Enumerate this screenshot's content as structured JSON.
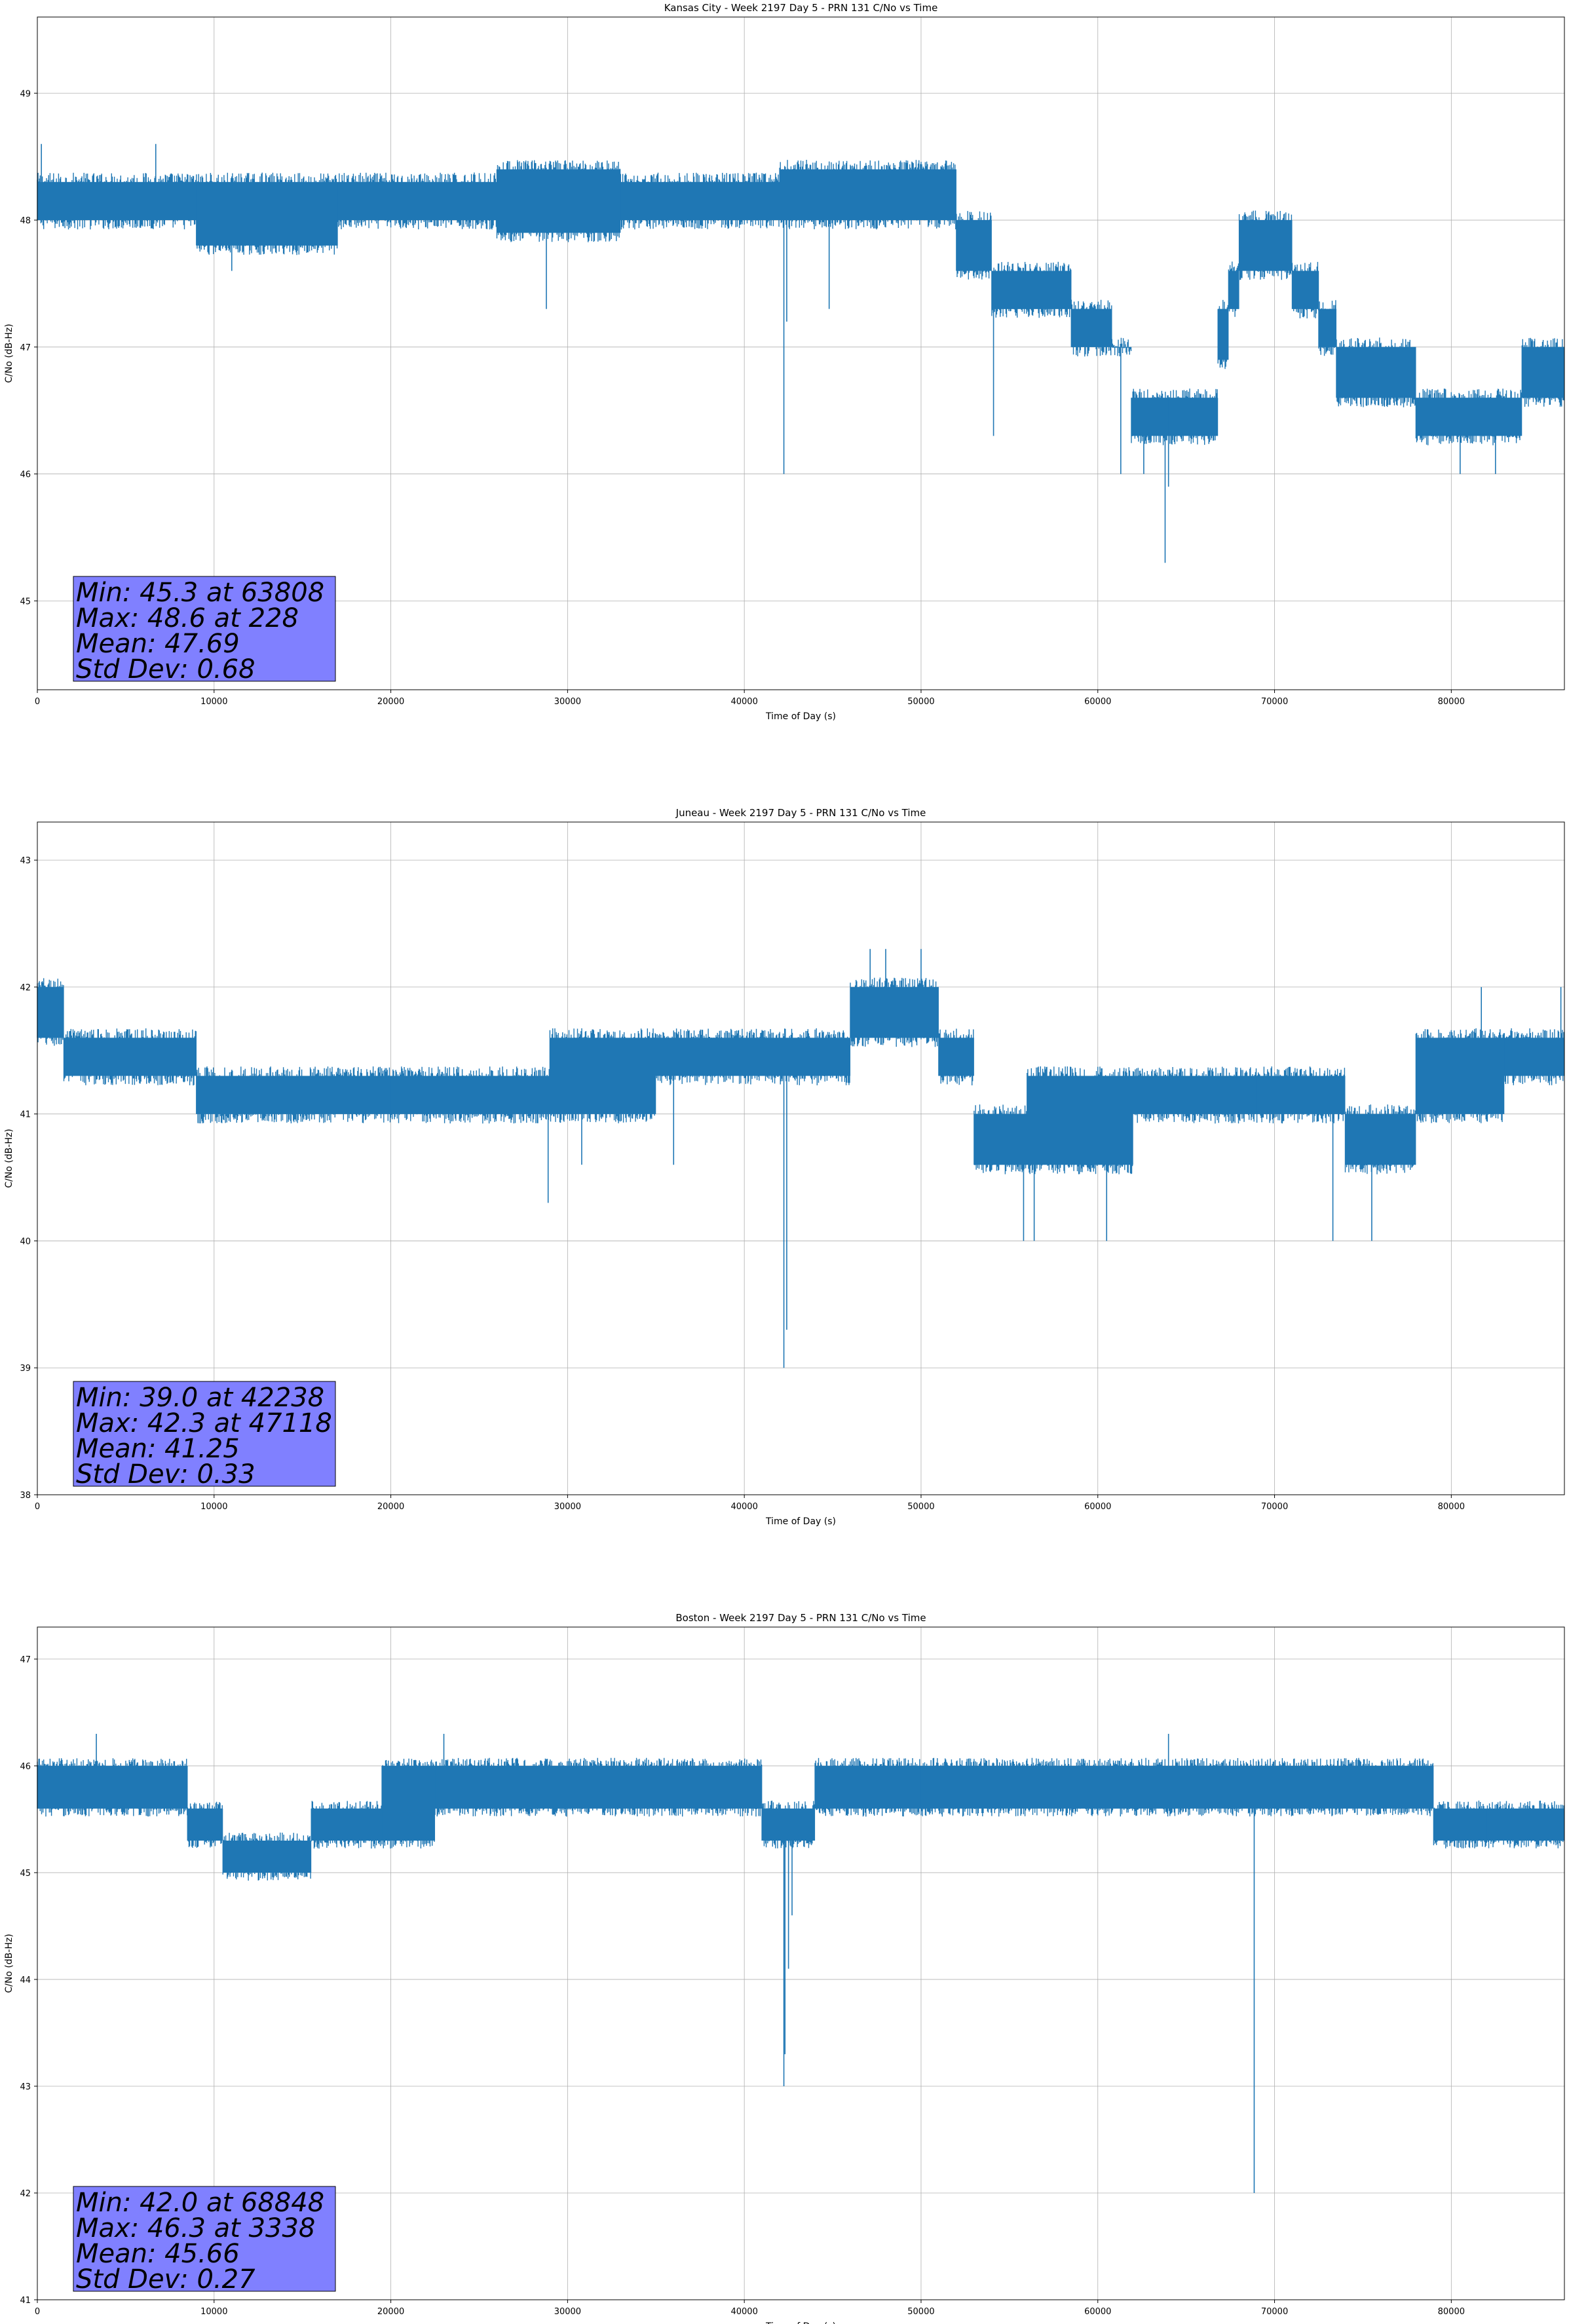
{
  "chart_data": [
    {
      "type": "line",
      "title": "Kansas City - Week 2197 Day 5 - PRN 131 C/No vs Time",
      "xlabel": "Time of Day (s)",
      "ylabel": "C/No (dB-Hz)",
      "xlim": [
        0,
        86400
      ],
      "ylim": [
        44.3,
        49.6
      ],
      "xticks": [
        0,
        10000,
        20000,
        30000,
        40000,
        50000,
        60000,
        70000,
        80000
      ],
      "yticks": [
        45,
        46,
        47,
        48,
        49
      ],
      "grid": true,
      "line_color": "#1f77b4",
      "stats_box_color": "#8080ff",
      "stats": [
        "Min: 45.3 at 63808",
        "Max: 48.6 at 228",
        "Mean: 47.69",
        "Std Dev: 0.68"
      ],
      "series": [
        {
          "baseline": [
            [
              0,
              48.1
            ],
            [
              9000,
              48.1
            ],
            [
              9100,
              48.0
            ],
            [
              30000,
              48.1
            ],
            [
              42000,
              48.1
            ],
            [
              42300,
              48.0
            ],
            [
              52000,
              48.0
            ],
            [
              52600,
              47.8
            ],
            [
              54000,
              47.6
            ],
            [
              54500,
              47.5
            ],
            [
              57000,
              47.4
            ],
            [
              59000,
              47.3
            ],
            [
              60000,
              47.1
            ],
            [
              61000,
              47.1
            ],
            [
              61800,
              46.5
            ],
            [
              64000,
              46.4
            ],
            [
              66000,
              46.5
            ],
            [
              66800,
              47.1
            ],
            [
              67500,
              47.5
            ],
            [
              68500,
              47.7
            ],
            [
              69500,
              47.8
            ],
            [
              71000,
              47.8
            ],
            [
              72000,
              47.4
            ],
            [
              73500,
              47.1
            ],
            [
              74500,
              46.8
            ],
            [
              78000,
              46.8
            ],
            [
              79000,
              46.5
            ],
            [
              83000,
              46.5
            ],
            [
              84500,
              46.8
            ],
            [
              86400,
              46.8
            ]
          ],
          "band_segments": [
            [
              0,
              9000,
              48.0,
              48.3
            ],
            [
              9000,
              17000,
              47.8,
              48.3
            ],
            [
              17000,
              26000,
              48.0,
              48.3
            ],
            [
              26000,
              33000,
              47.9,
              48.4
            ],
            [
              33000,
              42000,
              48.0,
              48.3
            ],
            [
              42000,
              52000,
              48.0,
              48.4
            ],
            [
              52000,
              54000,
              47.6,
              48.0
            ],
            [
              54000,
              58500,
              47.3,
              47.6
            ],
            [
              58500,
              60800,
              47.0,
              47.3
            ],
            [
              60800,
              61900,
              47.0,
              47.0
            ],
            [
              61900,
              64000,
              46.3,
              46.6
            ],
            [
              64000,
              66800,
              46.3,
              46.6
            ],
            [
              66800,
              67400,
              46.9,
              47.3
            ],
            [
              67400,
              68000,
              47.3,
              47.6
            ],
            [
              68000,
              71000,
              47.6,
              48.0
            ],
            [
              71000,
              72500,
              47.3,
              47.6
            ],
            [
              72500,
              73500,
              47.0,
              47.3
            ],
            [
              73500,
              78000,
              46.6,
              47.0
            ],
            [
              78000,
              84000,
              46.3,
              46.6
            ],
            [
              84000,
              86400,
              46.6,
              47.0
            ]
          ],
          "spikes": [
            [
              42238,
              46.0
            ],
            [
              42400,
              47.2
            ],
            [
              44800,
              47.3
            ],
            [
              63808,
              45.3
            ],
            [
              64000,
              45.9
            ],
            [
              54100,
              46.3
            ],
            [
              61300,
              46.0
            ],
            [
              62600,
              46.0
            ],
            [
              80500,
              46.0
            ],
            [
              82500,
              46.0
            ],
            [
              28800,
              47.3
            ],
            [
              11000,
              47.6
            ],
            [
              6700,
              48.6
            ],
            [
              228,
              48.6
            ]
          ]
        }
      ]
    },
    {
      "type": "line",
      "title": "Juneau - Week 2197 Day 5 - PRN 131 C/No vs Time",
      "xlabel": "Time of Day (s)",
      "ylabel": "C/No (dB-Hz)",
      "xlim": [
        0,
        86400
      ],
      "ylim": [
        38.0,
        43.3
      ],
      "xticks": [
        0,
        10000,
        20000,
        30000,
        40000,
        50000,
        60000,
        70000,
        80000
      ],
      "yticks": [
        38,
        39,
        40,
        41,
        42,
        43
      ],
      "grid": true,
      "line_color": "#1f77b4",
      "stats_box_color": "#8080ff",
      "stats": [
        "Min: 39.0 at 42238",
        "Max: 42.3 at 47118",
        "Mean: 41.25",
        "Std Dev: 0.33"
      ],
      "series": [
        {
          "band_segments": [
            [
              0,
              1500,
              41.6,
              42.0
            ],
            [
              1500,
              9000,
              41.3,
              41.6
            ],
            [
              9000,
              20000,
              41.0,
              41.3
            ],
            [
              20000,
              29000,
              41.0,
              41.3
            ],
            [
              29000,
              35000,
              41.0,
              41.6
            ],
            [
              35000,
              42000,
              41.3,
              41.6
            ],
            [
              42000,
              46000,
              41.3,
              41.6
            ],
            [
              46000,
              51000,
              41.6,
              42.0
            ],
            [
              51000,
              53000,
              41.3,
              41.6
            ],
            [
              53000,
              56000,
              40.6,
              41.0
            ],
            [
              56000,
              62000,
              40.6,
              41.3
            ],
            [
              62000,
              69000,
              41.0,
              41.3
            ],
            [
              69000,
              74000,
              41.0,
              41.3
            ],
            [
              74000,
              78000,
              40.6,
              41.0
            ],
            [
              78000,
              83000,
              41.0,
              41.6
            ],
            [
              83000,
              86400,
              41.3,
              41.6
            ]
          ],
          "spikes": [
            [
              42238,
              39.0
            ],
            [
              42400,
              39.3
            ],
            [
              28900,
              40.3
            ],
            [
              30800,
              40.6
            ],
            [
              36000,
              40.6
            ],
            [
              55800,
              40.0
            ],
            [
              56400,
              40.0
            ],
            [
              60500,
              40.0
            ],
            [
              73300,
              40.0
            ],
            [
              75500,
              40.0
            ],
            [
              47118,
              42.3
            ],
            [
              48000,
              42.3
            ],
            [
              50000,
              42.3
            ],
            [
              81700,
              42.0
            ],
            [
              86200,
              42.0
            ]
          ]
        }
      ]
    },
    {
      "type": "line",
      "title": "Boston - Week 2197 Day 5 - PRN 131 C/No vs Time",
      "xlabel": "Time of Day (s)",
      "ylabel": "C/No (dB-Hz)",
      "xlim": [
        0,
        86400
      ],
      "ylim": [
        41.0,
        47.3
      ],
      "xticks": [
        0,
        10000,
        20000,
        30000,
        40000,
        50000,
        60000,
        70000,
        80000
      ],
      "yticks": [
        41,
        42,
        43,
        44,
        45,
        46,
        47
      ],
      "grid": true,
      "line_color": "#1f77b4",
      "stats_box_color": "#8080ff",
      "stats": [
        "Min: 42.0 at 68848",
        "Max: 46.3 at 3338",
        "Mean: 45.66",
        "Std Dev: 0.27"
      ],
      "series": [
        {
          "band_segments": [
            [
              0,
              8500,
              45.6,
              46.0
            ],
            [
              8500,
              10500,
              45.3,
              45.6
            ],
            [
              10500,
              15500,
              45.0,
              45.3
            ],
            [
              15500,
              19500,
              45.3,
              45.6
            ],
            [
              19500,
              22500,
              45.3,
              46.0
            ],
            [
              22500,
              41000,
              45.6,
              46.0
            ],
            [
              41000,
              42000,
              45.3,
              45.6
            ],
            [
              42000,
              44000,
              45.3,
              45.6
            ],
            [
              44000,
              50000,
              45.6,
              46.0
            ],
            [
              50000,
              79000,
              45.6,
              46.0
            ],
            [
              79000,
              82000,
              45.3,
              45.6
            ],
            [
              82000,
              86400,
              45.3,
              45.6
            ]
          ],
          "spikes": [
            [
              42238,
              43.0
            ],
            [
              42300,
              43.3
            ],
            [
              42500,
              44.1
            ],
            [
              42700,
              44.6
            ],
            [
              68848,
              42.0
            ],
            [
              3338,
              46.3
            ],
            [
              23000,
              46.3
            ],
            [
              64000,
              46.3
            ]
          ]
        }
      ]
    }
  ]
}
